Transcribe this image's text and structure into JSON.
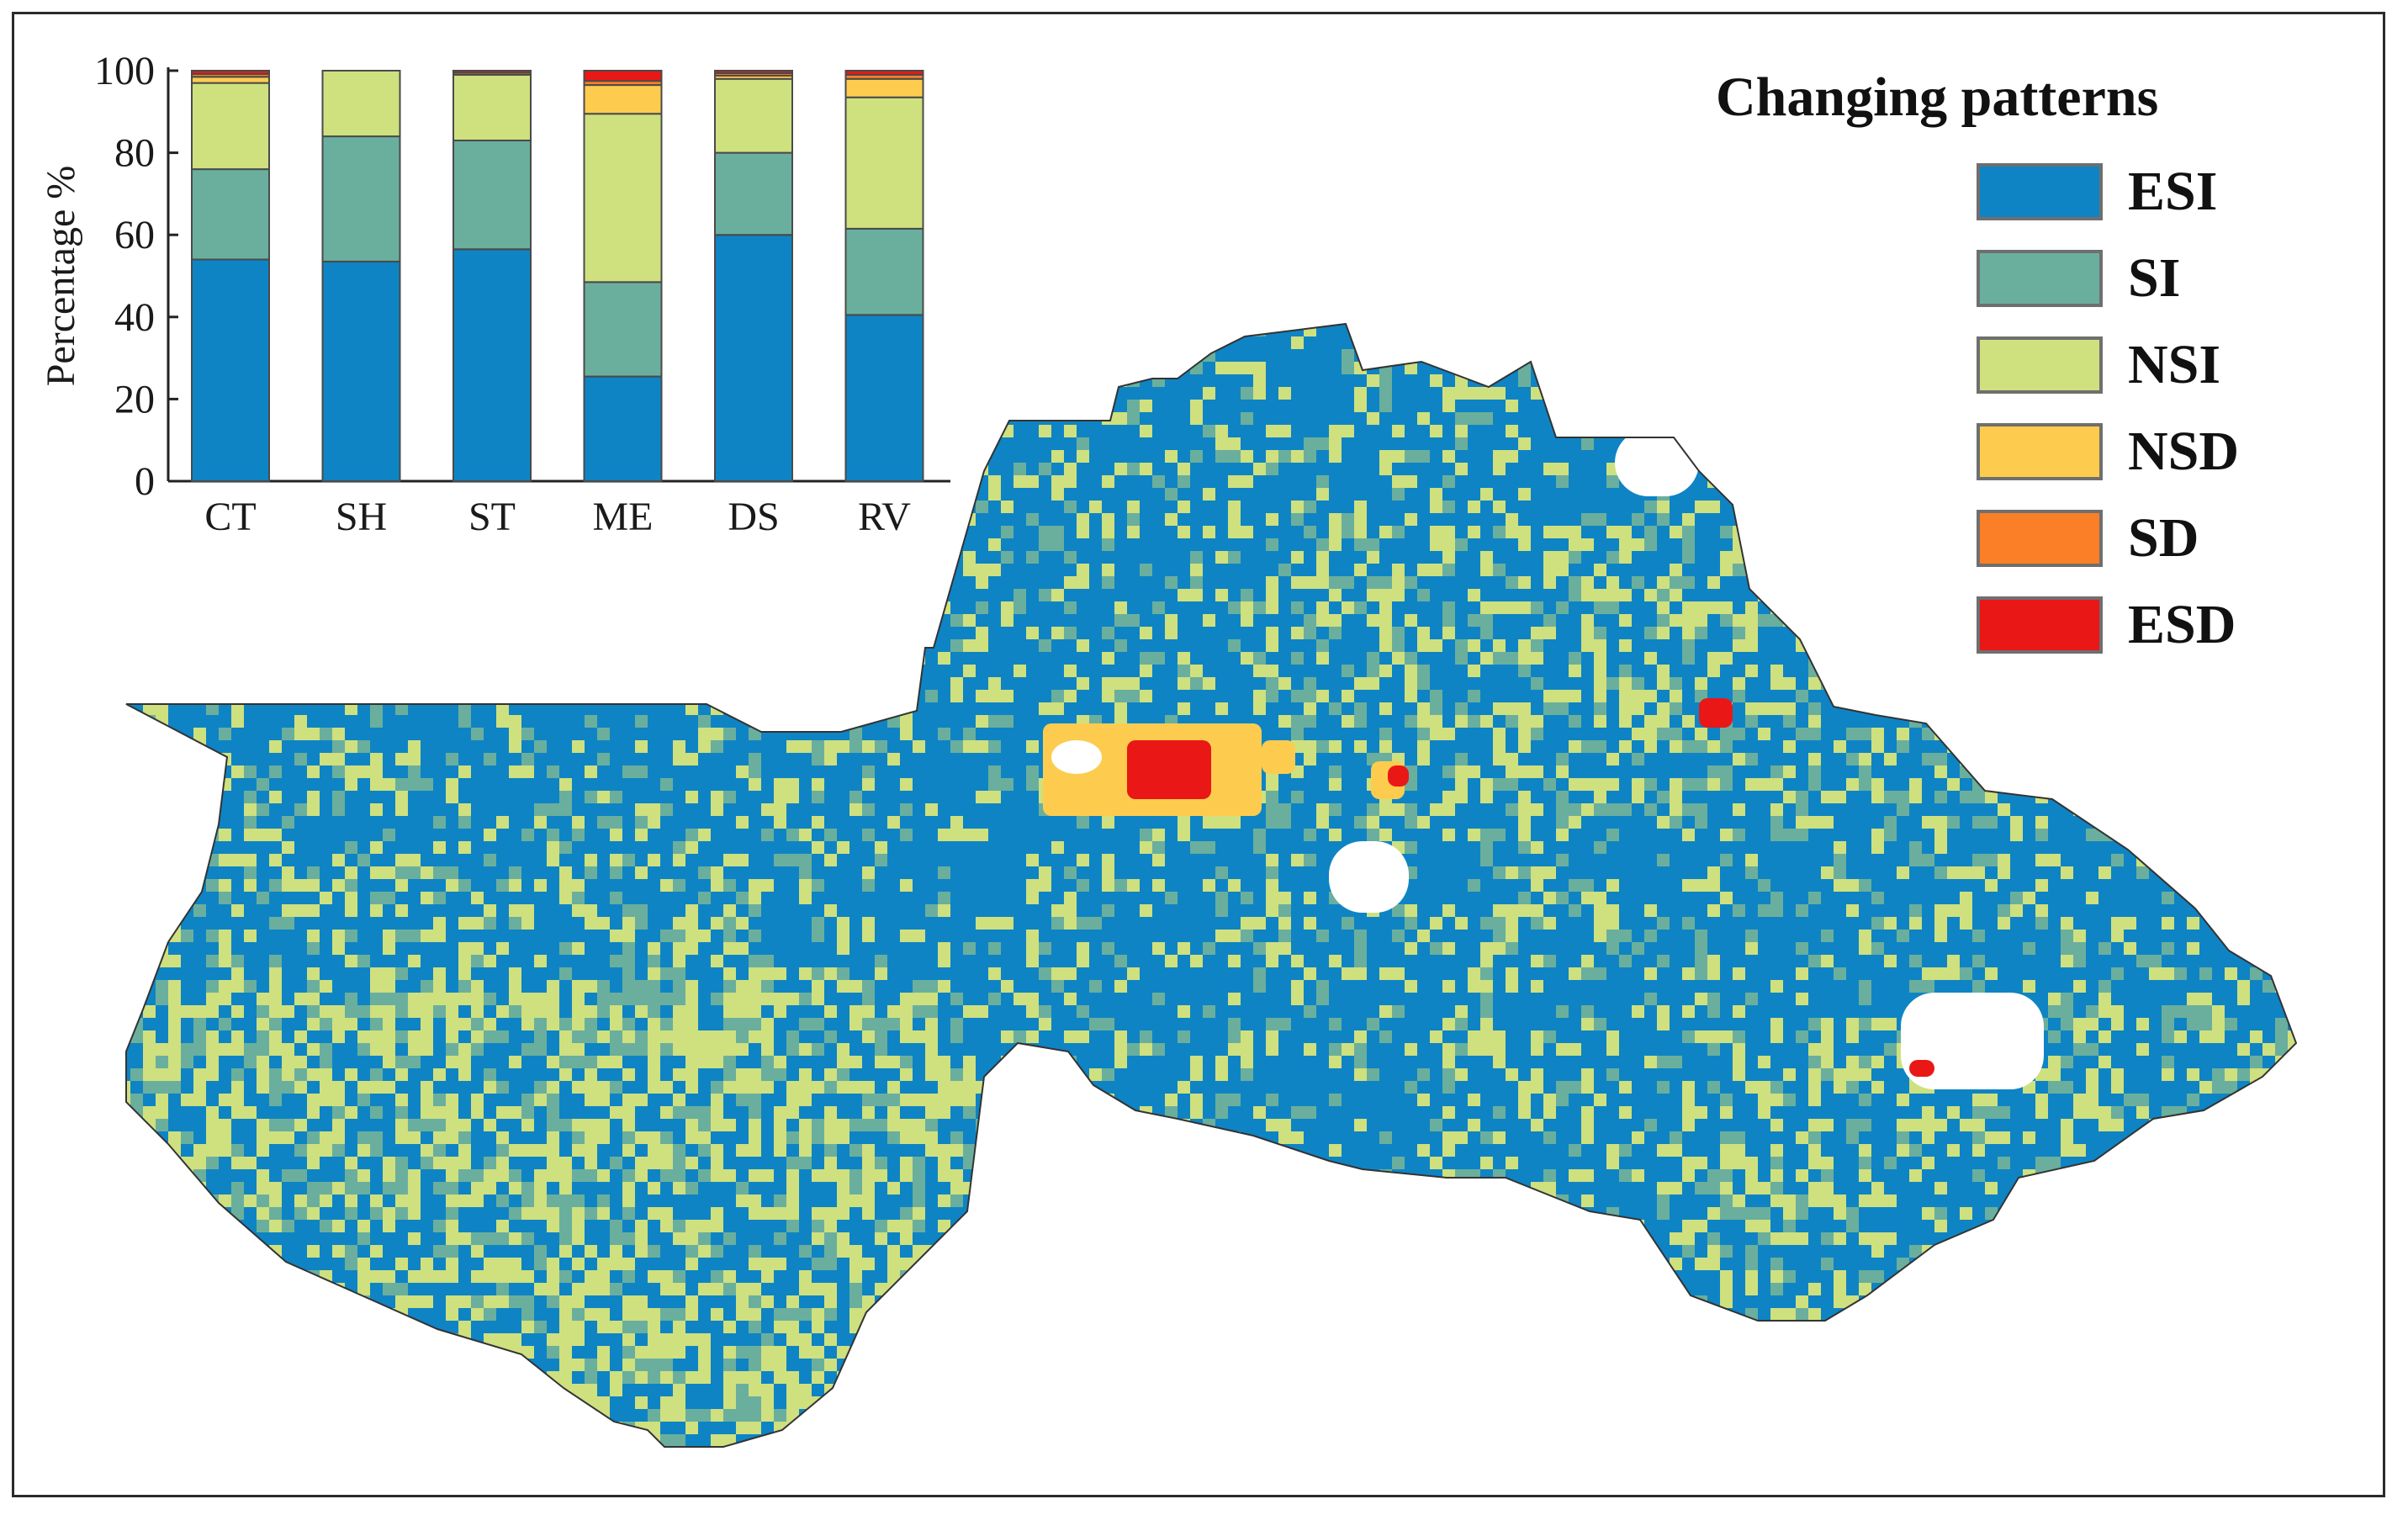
{
  "legend": {
    "title": "Changing patterns",
    "items": [
      {
        "label": "ESI",
        "color": "#0e84c4"
      },
      {
        "label": "SI",
        "color": "#6aaf9d"
      },
      {
        "label": "NSI",
        "color": "#cfe07f"
      },
      {
        "label": "NSD",
        "color": "#fdcc4f"
      },
      {
        "label": "SD",
        "color": "#fb7f26"
      },
      {
        "label": "ESD",
        "color": "#ea1717"
      }
    ]
  },
  "chart_data": {
    "type": "bar",
    "stacked": true,
    "categories": [
      "CT",
      "SH",
      "ST",
      "ME",
      "DS",
      "RV"
    ],
    "ylabel": "Percentage %",
    "ylim": [
      0,
      100
    ],
    "yticks": [
      0,
      20,
      40,
      60,
      80,
      100
    ],
    "series": [
      {
        "name": "ESI",
        "values": [
          54,
          53.5,
          56.5,
          25.5,
          60,
          40.5
        ]
      },
      {
        "name": "SI",
        "values": [
          22,
          30.5,
          26.5,
          23,
          20,
          21
        ]
      },
      {
        "name": "NSI",
        "values": [
          21,
          16,
          16,
          41,
          18,
          32
        ]
      },
      {
        "name": "NSD",
        "values": [
          1.5,
          0,
          0,
          7,
          0.8,
          4.5
        ]
      },
      {
        "name": "SD",
        "values": [
          0.7,
          0,
          0.5,
          1,
          0.6,
          1
        ]
      },
      {
        "name": "ESD",
        "values": [
          0.8,
          0,
          0.5,
          2.5,
          0.6,
          1
        ]
      }
    ]
  }
}
